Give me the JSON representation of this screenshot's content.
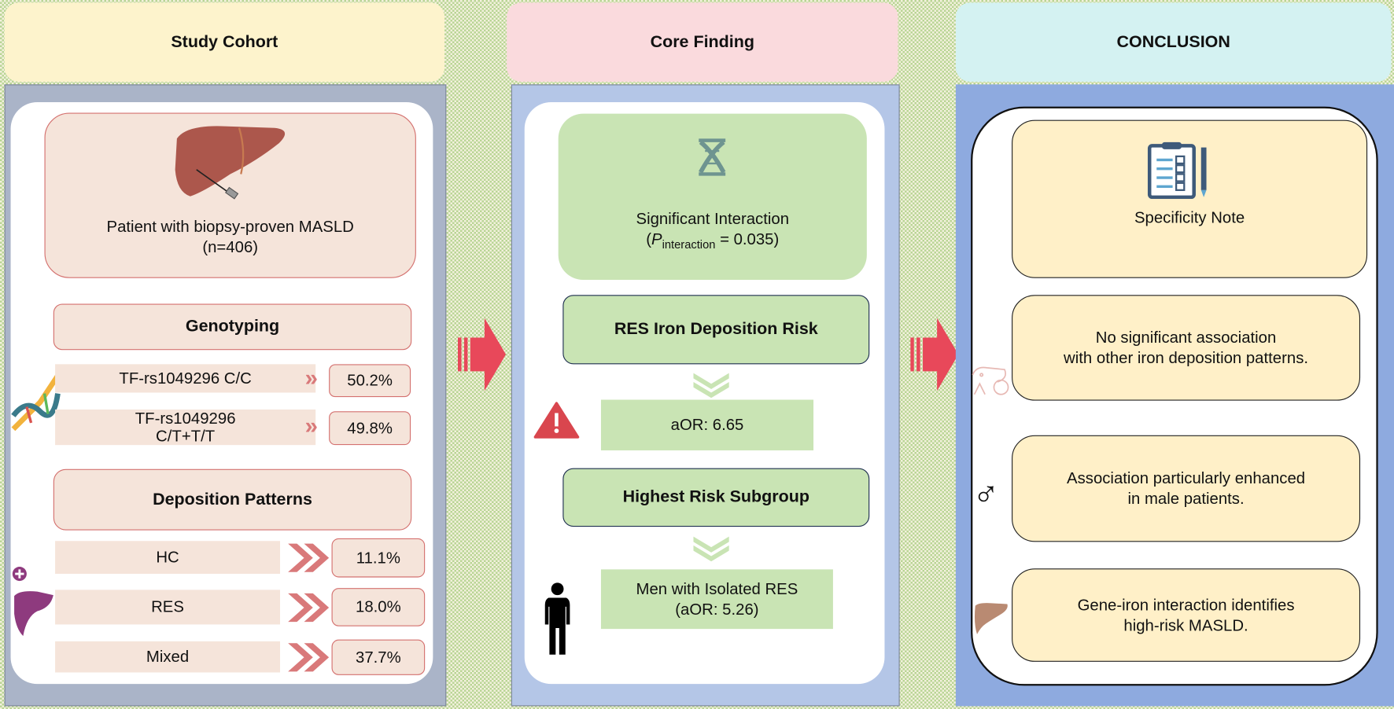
{
  "cohort": {
    "header": "Study Cohort",
    "patient_line1": "Patient with biopsy-proven MASLD",
    "patient_line2": "(n=406)",
    "genotyping_title": "Genotyping",
    "genotypes": [
      {
        "label": "TF-rs1049296 C/C",
        "pct": "50.2%"
      },
      {
        "label_line1": "TF-rs1049296",
        "label_line2": "C/T+T/T",
        "pct": "49.8%"
      }
    ],
    "deposition_title": "Deposition Patterns",
    "patterns": [
      {
        "label": "HC",
        "pct": "11.1%"
      },
      {
        "label": "RES",
        "pct": "18.0%"
      },
      {
        "label": "Mixed",
        "pct": "37.7%"
      }
    ]
  },
  "core": {
    "header": "Core Finding",
    "interaction_title": "Significant Interaction",
    "p_symbol": "P",
    "p_sub": "interaction",
    "p_value": " = 0.035)",
    "p_open": "(",
    "res_risk_title": "RES Iron Deposition Risk",
    "aor": "aOR: 6.65",
    "subgroup_title": "Highest Risk Subgroup",
    "subgroup_line1": "Men with Isolated RES",
    "subgroup_line2": "(aOR: 5.26)"
  },
  "conclusion": {
    "header": "CONCLUSION",
    "specificity": "Specificity Note",
    "no_assoc_line1": "No significant association",
    "no_assoc_line2": "with  other iron deposition patterns.",
    "male_line1": "Association particularly enhanced",
    "male_line2": "in male patients.",
    "gene_line1": "Gene-iron interaction identifies",
    "gene_line2": "high-risk MASLD."
  },
  "colors": {
    "cohort_header": "#fdf3cc",
    "cohort_body": "#aab4c8",
    "cohort_accent": "#d4716f",
    "core_header": "#fadadd",
    "core_body": "#b4c6e7",
    "core_green": "#c9e4b4",
    "conclusion_header": "#d4f2f2",
    "conclusion_body": "#8eaadf",
    "conclusion_box": "#fff0c8",
    "flow_arrow": "#e8485a"
  }
}
